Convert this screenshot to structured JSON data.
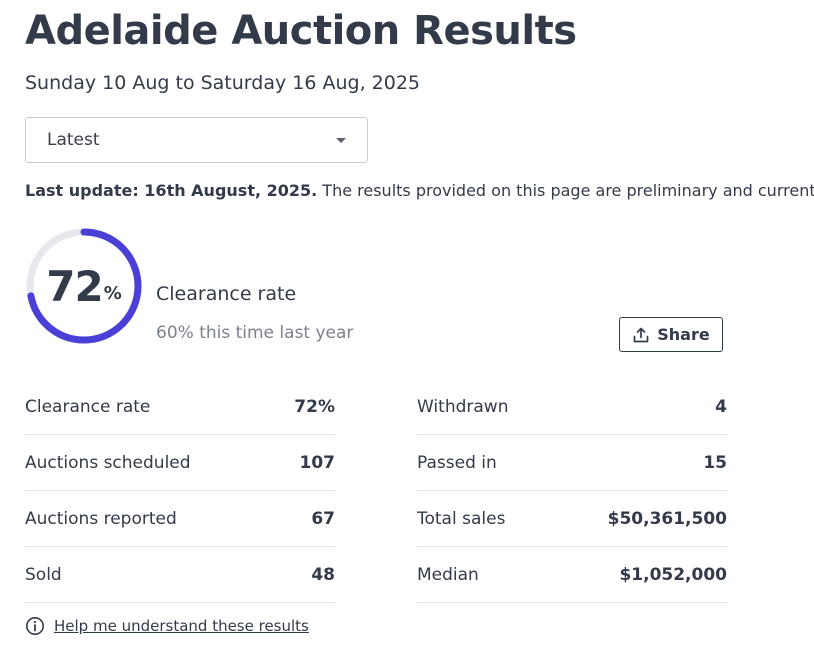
{
  "header": {
    "title": "Adelaide Auction Results",
    "date_range": "Sunday 10 Aug to Saturday 16 Aug, 2025"
  },
  "period_select": {
    "value": "Latest"
  },
  "update_notice": {
    "bold": "Last update: 16th August, 2025.",
    "text": " The results provided on this page are preliminary and current at"
  },
  "clearance": {
    "value": "72",
    "unit": "%",
    "progress_fraction": 0.72,
    "label": "Clearance rate",
    "last_year": "60% this time last year",
    "ring_color": "#4a3fd6",
    "track_color": "#e6e8ec"
  },
  "share": {
    "label": "Share",
    "icon": "upload-share-icon"
  },
  "stats_left": [
    {
      "label": "Clearance rate",
      "value": "72%"
    },
    {
      "label": "Auctions scheduled",
      "value": "107"
    },
    {
      "label": "Auctions reported",
      "value": "67"
    },
    {
      "label": "Sold",
      "value": "48"
    }
  ],
  "stats_right": [
    {
      "label": "Withdrawn",
      "value": "4"
    },
    {
      "label": "Passed in",
      "value": "15"
    },
    {
      "label": "Total sales",
      "value": "$50,361,500"
    },
    {
      "label": "Median",
      "value": "$1,052,000"
    }
  ],
  "help": {
    "icon": "info-icon",
    "link": "Help me understand these results"
  }
}
